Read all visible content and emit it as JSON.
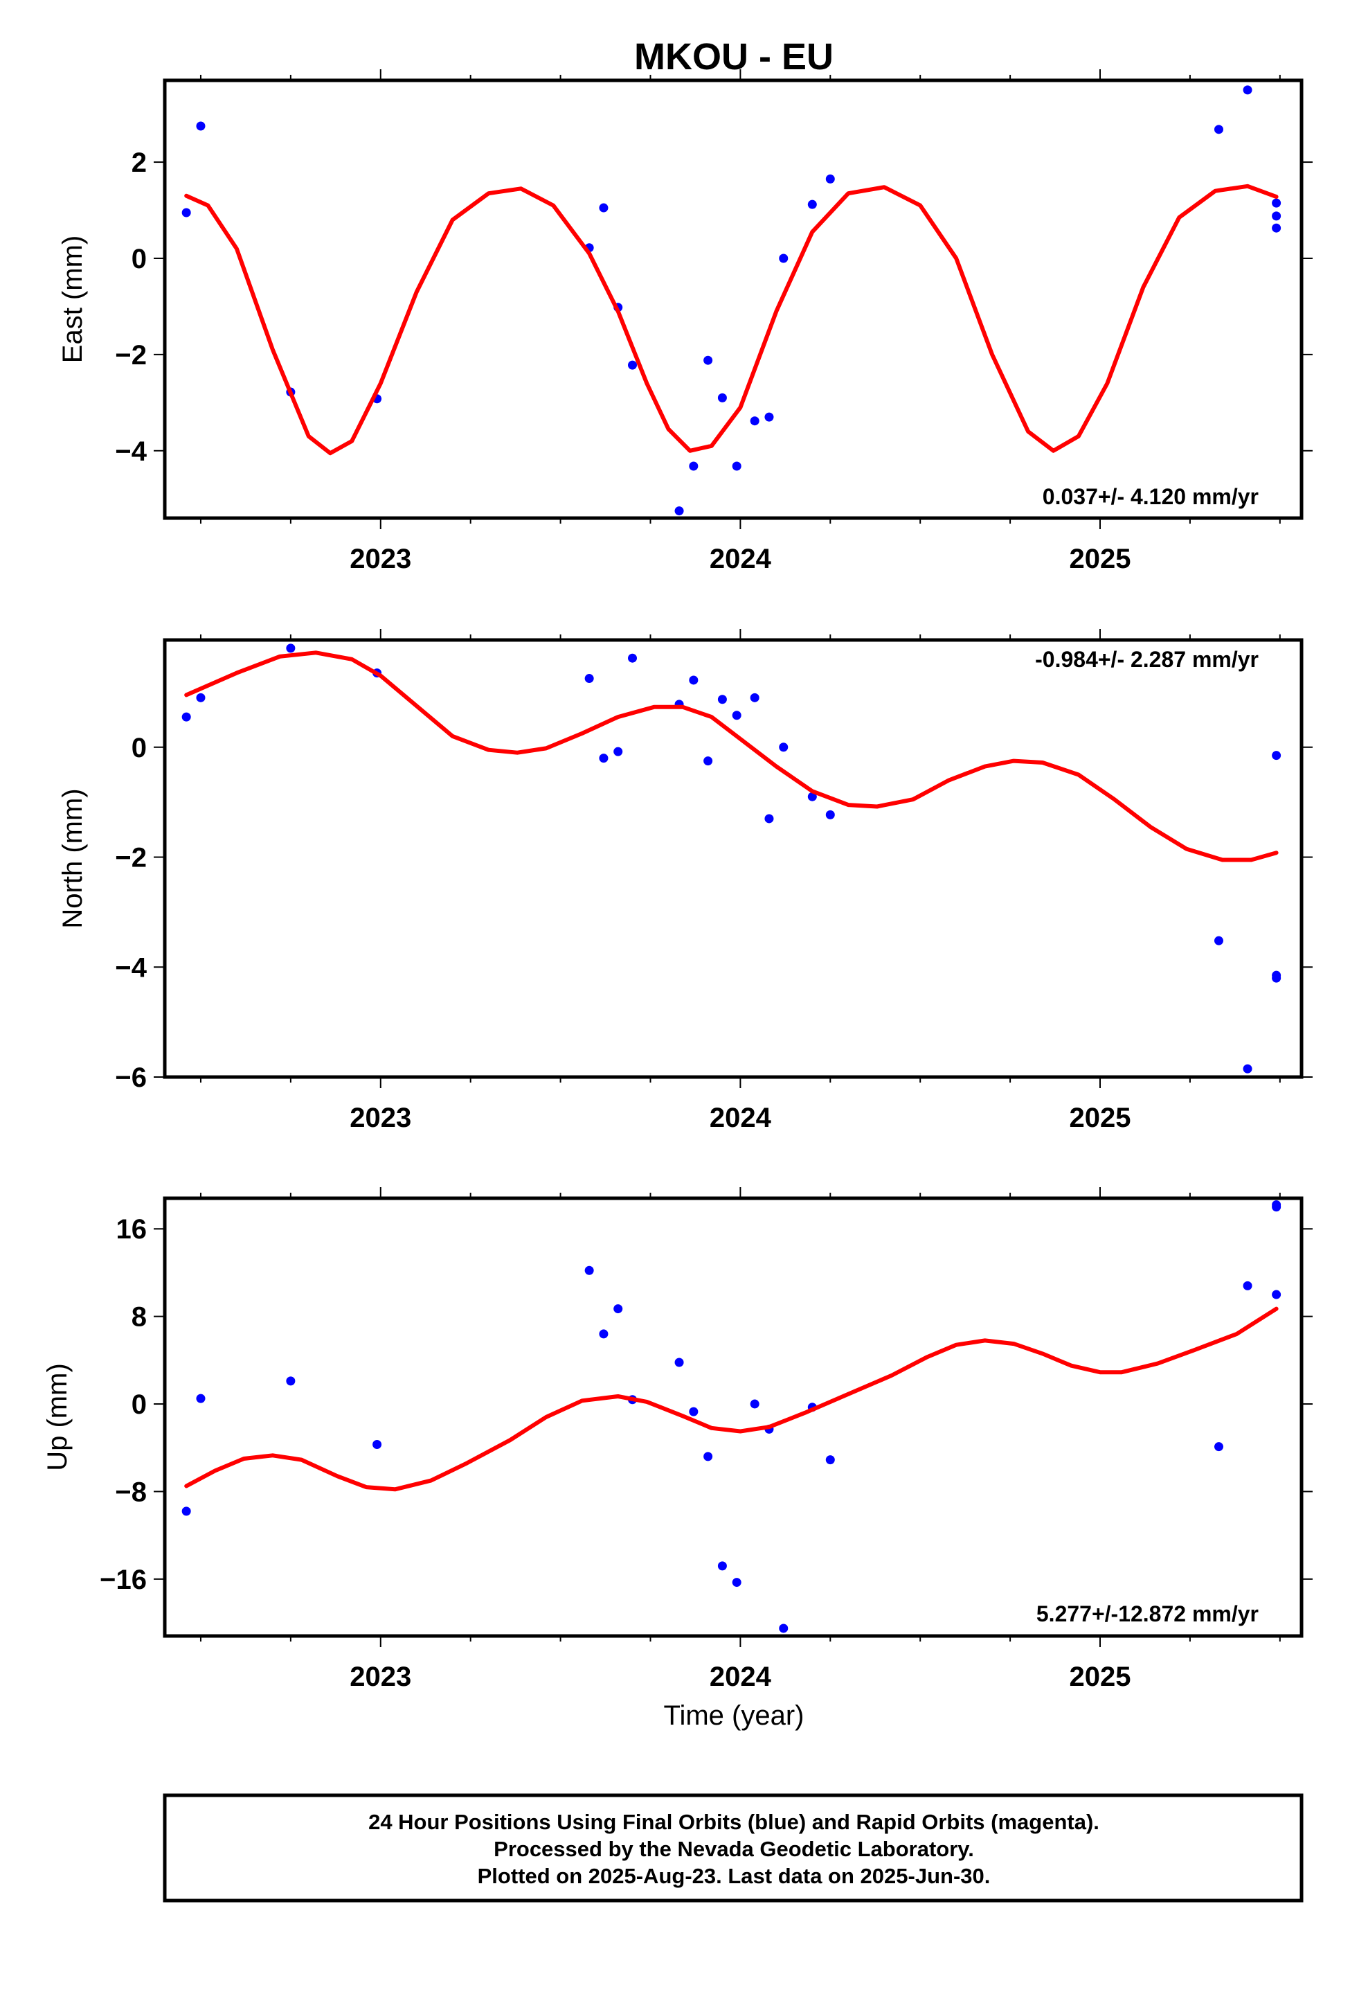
{
  "title": "MKOU - EU",
  "xlabel": "Time (year)",
  "footer": {
    "line1": "24 Hour Positions Using Final Orbits (blue) and Rapid Orbits (magenta).",
    "line2": "Processed by the Nevada Geodetic Laboratory.",
    "line3": "Plotted on 2025-Aug-23. Last data on 2025-Jun-30."
  },
  "colors": {
    "points": "#0000ff",
    "fit": "#ff0000",
    "axis": "#000000"
  },
  "chart_data": [
    {
      "type": "scatter",
      "ylabel": "East (mm)",
      "rate_label": "0.037+/- 4.120 mm/yr",
      "xlim": [
        2022.4,
        2025.56
      ],
      "ylim": [
        -5.4,
        3.7
      ],
      "xticks": [
        2023,
        2024,
        2025
      ],
      "yticks": [
        -4,
        -2,
        0,
        2
      ],
      "points": [
        [
          2022.46,
          0.95
        ],
        [
          2022.5,
          2.75
        ],
        [
          2022.75,
          -2.78
        ],
        [
          2022.99,
          -2.92
        ],
        [
          2023.58,
          0.22
        ],
        [
          2023.62,
          1.05
        ],
        [
          2023.66,
          -1.02
        ],
        [
          2023.7,
          -2.22
        ],
        [
          2023.83,
          -5.25
        ],
        [
          2023.87,
          -4.32
        ],
        [
          2023.91,
          -2.12
        ],
        [
          2023.95,
          -2.9
        ],
        [
          2023.99,
          -4.32
        ],
        [
          2024.04,
          -3.38
        ],
        [
          2024.08,
          -3.3
        ],
        [
          2024.12,
          0.0
        ],
        [
          2024.2,
          1.12
        ],
        [
          2024.25,
          1.65
        ],
        [
          2025.33,
          2.68
        ],
        [
          2025.41,
          3.5
        ],
        [
          2025.49,
          1.15
        ],
        [
          2025.49,
          0.88
        ],
        [
          2025.49,
          0.63
        ]
      ],
      "fit": [
        [
          2022.46,
          1.3
        ],
        [
          2022.52,
          1.1
        ],
        [
          2022.6,
          0.2
        ],
        [
          2022.7,
          -1.9
        ],
        [
          2022.8,
          -3.7
        ],
        [
          2022.86,
          -4.05
        ],
        [
          2022.92,
          -3.8
        ],
        [
          2023.0,
          -2.6
        ],
        [
          2023.1,
          -0.7
        ],
        [
          2023.2,
          0.8
        ],
        [
          2023.3,
          1.35
        ],
        [
          2023.39,
          1.45
        ],
        [
          2023.48,
          1.1
        ],
        [
          2023.58,
          0.1
        ],
        [
          2023.66,
          -1.1
        ],
        [
          2023.74,
          -2.6
        ],
        [
          2023.8,
          -3.55
        ],
        [
          2023.86,
          -4.0
        ],
        [
          2023.92,
          -3.9
        ],
        [
          2024.0,
          -3.1
        ],
        [
          2024.1,
          -1.1
        ],
        [
          2024.2,
          0.55
        ],
        [
          2024.3,
          1.35
        ],
        [
          2024.4,
          1.48
        ],
        [
          2024.5,
          1.1
        ],
        [
          2024.6,
          0.0
        ],
        [
          2024.7,
          -2.0
        ],
        [
          2024.8,
          -3.6
        ],
        [
          2024.87,
          -4.0
        ],
        [
          2024.94,
          -3.7
        ],
        [
          2025.02,
          -2.6
        ],
        [
          2025.12,
          -0.6
        ],
        [
          2025.22,
          0.85
        ],
        [
          2025.32,
          1.4
        ],
        [
          2025.41,
          1.5
        ],
        [
          2025.49,
          1.28
        ]
      ]
    },
    {
      "type": "scatter",
      "ylabel": "North (mm)",
      "rate_label": "-0.984+/- 2.287 mm/yr",
      "xlim": [
        2022.4,
        2025.56
      ],
      "ylim": [
        -6.0,
        1.95
      ],
      "xticks": [
        2023,
        2024,
        2025
      ],
      "yticks": [
        -6,
        -4,
        -2,
        0
      ],
      "points": [
        [
          2022.46,
          0.55
        ],
        [
          2022.5,
          0.9
        ],
        [
          2022.75,
          1.8
        ],
        [
          2022.99,
          1.35
        ],
        [
          2023.58,
          1.25
        ],
        [
          2023.62,
          -0.2
        ],
        [
          2023.66,
          -0.08
        ],
        [
          2023.7,
          1.62
        ],
        [
          2023.83,
          0.78
        ],
        [
          2023.87,
          1.22
        ],
        [
          2023.91,
          -0.25
        ],
        [
          2023.95,
          0.87
        ],
        [
          2023.99,
          0.58
        ],
        [
          2024.04,
          0.9
        ],
        [
          2024.08,
          -1.3
        ],
        [
          2024.12,
          0.0
        ],
        [
          2024.2,
          -0.9
        ],
        [
          2024.25,
          -1.23
        ],
        [
          2025.33,
          -3.52
        ],
        [
          2025.41,
          -5.85
        ],
        [
          2025.49,
          -4.15
        ],
        [
          2025.49,
          -4.2
        ],
        [
          2025.49,
          -0.15
        ]
      ],
      "fit": [
        [
          2022.46,
          0.95
        ],
        [
          2022.6,
          1.35
        ],
        [
          2022.72,
          1.65
        ],
        [
          2022.82,
          1.72
        ],
        [
          2022.92,
          1.6
        ],
        [
          2023.0,
          1.3
        ],
        [
          2023.1,
          0.75
        ],
        [
          2023.2,
          0.2
        ],
        [
          2023.3,
          -0.05
        ],
        [
          2023.38,
          -0.1
        ],
        [
          2023.46,
          -0.02
        ],
        [
          2023.56,
          0.25
        ],
        [
          2023.66,
          0.55
        ],
        [
          2023.76,
          0.73
        ],
        [
          2023.84,
          0.73
        ],
        [
          2023.92,
          0.55
        ],
        [
          2024.0,
          0.15
        ],
        [
          2024.1,
          -0.35
        ],
        [
          2024.2,
          -0.8
        ],
        [
          2024.3,
          -1.05
        ],
        [
          2024.38,
          -1.08
        ],
        [
          2024.48,
          -0.95
        ],
        [
          2024.58,
          -0.6
        ],
        [
          2024.68,
          -0.35
        ],
        [
          2024.76,
          -0.25
        ],
        [
          2024.84,
          -0.28
        ],
        [
          2024.94,
          -0.5
        ],
        [
          2025.04,
          -0.95
        ],
        [
          2025.14,
          -1.45
        ],
        [
          2025.24,
          -1.85
        ],
        [
          2025.34,
          -2.05
        ],
        [
          2025.42,
          -2.05
        ],
        [
          2025.49,
          -1.92
        ]
      ]
    },
    {
      "type": "scatter",
      "ylabel": "Up (mm)",
      "rate_label": "5.277+/-12.872 mm/yr",
      "xlim": [
        2022.4,
        2025.56
      ],
      "ylim": [
        -21.2,
        18.8
      ],
      "xticks": [
        2023,
        2024,
        2025
      ],
      "yticks": [
        -16,
        -8,
        0,
        8,
        16
      ],
      "points": [
        [
          2022.46,
          -9.8
        ],
        [
          2022.5,
          0.5
        ],
        [
          2022.75,
          2.1
        ],
        [
          2022.99,
          -3.7
        ],
        [
          2023.58,
          12.2
        ],
        [
          2023.62,
          6.4
        ],
        [
          2023.66,
          8.7
        ],
        [
          2023.7,
          0.4
        ],
        [
          2023.83,
          3.8
        ],
        [
          2023.87,
          -0.7
        ],
        [
          2023.91,
          -4.8
        ],
        [
          2023.95,
          -14.8
        ],
        [
          2023.99,
          -16.3
        ],
        [
          2024.04,
          0.0
        ],
        [
          2024.08,
          -2.3
        ],
        [
          2024.12,
          -20.5
        ],
        [
          2024.2,
          -0.3
        ],
        [
          2024.25,
          -5.1
        ],
        [
          2025.33,
          -3.9
        ],
        [
          2025.41,
          10.8
        ],
        [
          2025.49,
          18.0
        ],
        [
          2025.49,
          18.2
        ],
        [
          2025.49,
          10.0
        ]
      ],
      "fit": [
        [
          2022.46,
          -7.5
        ],
        [
          2022.54,
          -6.1
        ],
        [
          2022.62,
          -5.0
        ],
        [
          2022.7,
          -4.7
        ],
        [
          2022.78,
          -5.1
        ],
        [
          2022.88,
          -6.6
        ],
        [
          2022.96,
          -7.6
        ],
        [
          2023.04,
          -7.8
        ],
        [
          2023.14,
          -7.0
        ],
        [
          2023.24,
          -5.4
        ],
        [
          2023.36,
          -3.3
        ],
        [
          2023.46,
          -1.2
        ],
        [
          2023.56,
          0.3
        ],
        [
          2023.66,
          0.7
        ],
        [
          2023.74,
          0.2
        ],
        [
          2023.84,
          -1.1
        ],
        [
          2023.92,
          -2.2
        ],
        [
          2024.0,
          -2.5
        ],
        [
          2024.08,
          -2.1
        ],
        [
          2024.18,
          -0.8
        ],
        [
          2024.3,
          0.9
        ],
        [
          2024.42,
          2.6
        ],
        [
          2024.52,
          4.3
        ],
        [
          2024.6,
          5.4
        ],
        [
          2024.68,
          5.8
        ],
        [
          2024.76,
          5.5
        ],
        [
          2024.84,
          4.6
        ],
        [
          2024.92,
          3.5
        ],
        [
          2025.0,
          2.9
        ],
        [
          2025.06,
          2.9
        ],
        [
          2025.16,
          3.7
        ],
        [
          2025.26,
          4.9
        ],
        [
          2025.38,
          6.4
        ],
        [
          2025.49,
          8.7
        ]
      ]
    }
  ]
}
